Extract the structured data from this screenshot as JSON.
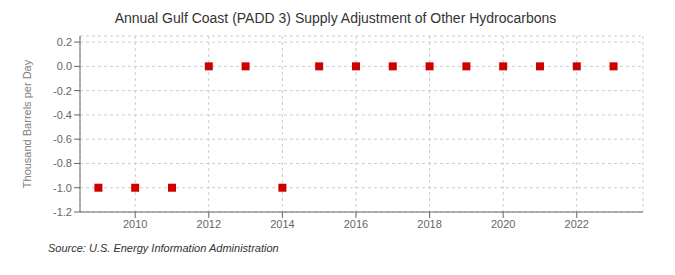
{
  "chart_data": {
    "type": "scatter",
    "title": "Annual Gulf Coast (PADD 3) Supply Adjustment of Other Hydrocarbons",
    "ylabel": "Thousand Barrels per Day",
    "annotations": [
      "Source: U.S. Energy Information Administration"
    ],
    "x": [
      2009,
      2010,
      2011,
      2012,
      2013,
      2014,
      2015,
      2016,
      2017,
      2018,
      2019,
      2020,
      2021,
      2022,
      2023
    ],
    "values": [
      -1.0,
      -1.0,
      -1.0,
      0.0,
      0.0,
      -1.0,
      0.0,
      0.0,
      0.0,
      0.0,
      0.0,
      0.0,
      0.0,
      0.0,
      0.0
    ],
    "color": "#cc0000",
    "marker": "square",
    "xlim": [
      2008.5,
      2023.8
    ],
    "xticks": [
      2010,
      2012,
      2014,
      2016,
      2018,
      2020,
      2022
    ],
    "ylim": [
      -1.2,
      0.25
    ],
    "yticks": [
      -1.2,
      {
        "value": -1.0,
        "label": "-1.0"
      },
      -0.8,
      -0.6,
      -0.4,
      -0.2,
      {
        "value": 0.0,
        "label": "0.0"
      },
      0.2
    ],
    "grid": true
  }
}
